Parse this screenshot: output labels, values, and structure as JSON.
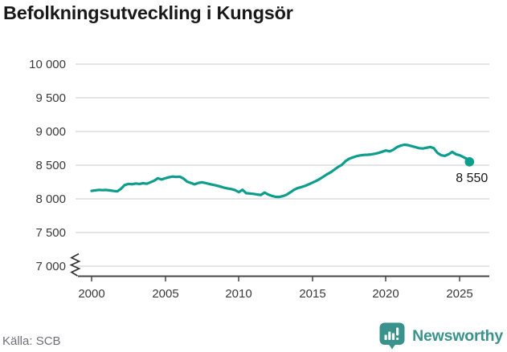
{
  "header": {
    "title": "Befolkningsutveckling i Kungsör"
  },
  "footer": {
    "source": "Källa: SCB",
    "brand": "Newsworthy"
  },
  "colors": {
    "line": "#0d9d8d",
    "brand": "#3a928c"
  },
  "chart_data": {
    "type": "line",
    "title": "Befolkningsutveckling i Kungsör",
    "xlabel": "",
    "ylabel": "",
    "legend": "none",
    "grid": "horizontal",
    "y_ticks": [
      "10 000",
      "9 500",
      "9 000",
      "8 500",
      "8 000",
      "7 500",
      "7 000"
    ],
    "x_ticks": [
      "2000",
      "2005",
      "2010",
      "2015",
      "2020",
      "2025"
    ],
    "ylim": [
      7000,
      10000
    ],
    "xlim": [
      2000,
      2027
    ],
    "axis_break_at_bottom": true,
    "end_label": "8 550",
    "end_value": 8550,
    "series": [
      {
        "name": "Befolkning",
        "points": [
          [
            2000,
            8118
          ],
          [
            2000.25,
            8126
          ],
          [
            2000.5,
            8133
          ],
          [
            2000.75,
            8128
          ],
          [
            2001,
            8132
          ],
          [
            2001.25,
            8125
          ],
          [
            2001.5,
            8117
          ],
          [
            2001.75,
            8112
          ],
          [
            2002,
            8150
          ],
          [
            2002.25,
            8205
          ],
          [
            2002.5,
            8222
          ],
          [
            2002.75,
            8217
          ],
          [
            2003,
            8228
          ],
          [
            2003.25,
            8221
          ],
          [
            2003.5,
            8232
          ],
          [
            2003.75,
            8224
          ],
          [
            2004,
            8246
          ],
          [
            2004.25,
            8270
          ],
          [
            2004.5,
            8305
          ],
          [
            2004.75,
            8288
          ],
          [
            2005,
            8305
          ],
          [
            2005.25,
            8320
          ],
          [
            2005.5,
            8331
          ],
          [
            2005.75,
            8325
          ],
          [
            2006,
            8330
          ],
          [
            2006.25,
            8300
          ],
          [
            2006.5,
            8255
          ],
          [
            2006.75,
            8235
          ],
          [
            2007,
            8215
          ],
          [
            2007.25,
            8236
          ],
          [
            2007.5,
            8246
          ],
          [
            2007.75,
            8235
          ],
          [
            2008,
            8220
          ],
          [
            2008.25,
            8210
          ],
          [
            2008.5,
            8198
          ],
          [
            2008.75,
            8182
          ],
          [
            2009,
            8165
          ],
          [
            2009.25,
            8154
          ],
          [
            2009.5,
            8145
          ],
          [
            2009.75,
            8130
          ],
          [
            2010,
            8100
          ],
          [
            2010.25,
            8135
          ],
          [
            2010.5,
            8085
          ],
          [
            2010.75,
            8080
          ],
          [
            2011,
            8074
          ],
          [
            2011.25,
            8064
          ],
          [
            2011.5,
            8058
          ],
          [
            2011.75,
            8094
          ],
          [
            2012,
            8064
          ],
          [
            2012.25,
            8044
          ],
          [
            2012.5,
            8030
          ],
          [
            2012.75,
            8028
          ],
          [
            2013,
            8040
          ],
          [
            2013.25,
            8062
          ],
          [
            2013.5,
            8096
          ],
          [
            2013.75,
            8135
          ],
          [
            2014,
            8160
          ],
          [
            2014.25,
            8175
          ],
          [
            2014.5,
            8192
          ],
          [
            2014.75,
            8215
          ],
          [
            2015,
            8240
          ],
          [
            2015.25,
            8265
          ],
          [
            2015.5,
            8295
          ],
          [
            2015.75,
            8330
          ],
          [
            2016,
            8365
          ],
          [
            2016.25,
            8395
          ],
          [
            2016.5,
            8435
          ],
          [
            2016.75,
            8475
          ],
          [
            2017,
            8505
          ],
          [
            2017.25,
            8560
          ],
          [
            2017.5,
            8595
          ],
          [
            2017.75,
            8615
          ],
          [
            2018,
            8635
          ],
          [
            2018.25,
            8645
          ],
          [
            2018.5,
            8652
          ],
          [
            2018.75,
            8655
          ],
          [
            2019,
            8660
          ],
          [
            2019.25,
            8670
          ],
          [
            2019.5,
            8682
          ],
          [
            2019.75,
            8700
          ],
          [
            2020,
            8718
          ],
          [
            2020.25,
            8705
          ],
          [
            2020.5,
            8730
          ],
          [
            2020.75,
            8768
          ],
          [
            2021,
            8790
          ],
          [
            2021.25,
            8804
          ],
          [
            2021.5,
            8798
          ],
          [
            2021.75,
            8782
          ],
          [
            2022,
            8768
          ],
          [
            2022.25,
            8752
          ],
          [
            2022.5,
            8748
          ],
          [
            2022.75,
            8758
          ],
          [
            2023,
            8770
          ],
          [
            2023.25,
            8752
          ],
          [
            2023.5,
            8682
          ],
          [
            2023.75,
            8648
          ],
          [
            2024,
            8638
          ],
          [
            2024.25,
            8662
          ],
          [
            2024.5,
            8698
          ],
          [
            2024.75,
            8662
          ],
          [
            2025,
            8648
          ],
          [
            2025.25,
            8622
          ],
          [
            2025.5,
            8592
          ],
          [
            2025.67,
            8550
          ]
        ]
      }
    ]
  }
}
